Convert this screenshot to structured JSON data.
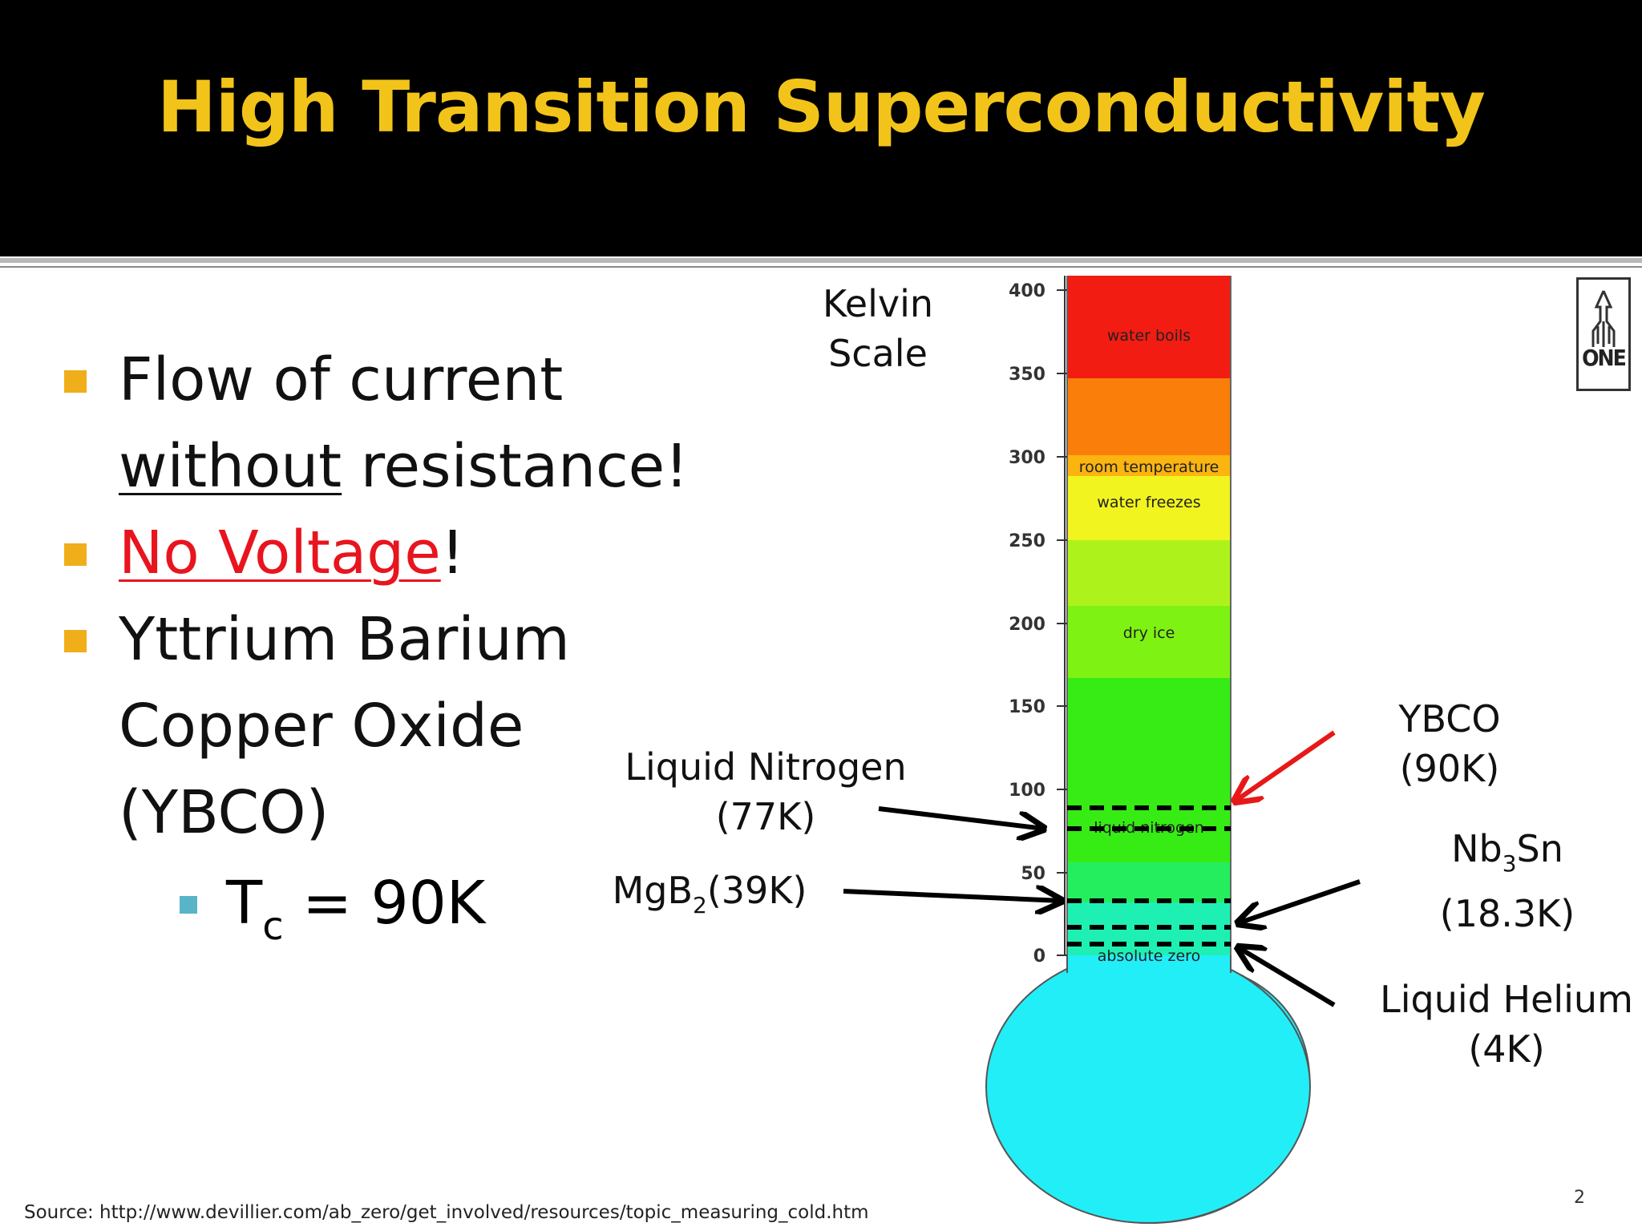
{
  "slide": {
    "title": "High Transition Superconductivity",
    "page_number": "2",
    "source": "Source: http://www.devillier.com/ab_zero/get_involved/resources/topic_measuring_cold.htm"
  },
  "bullets": {
    "b1_line1": "Flow of current",
    "b1_word_underlined": "without",
    "b1_rest": " resistance!",
    "b2_link": "No Voltage",
    "b2_rest": "!",
    "b3_line1": "Yttrium  Barium",
    "b3_line2": "Copper Oxide",
    "b3_line3": "(YBCO)",
    "sub_T": "T",
    "sub_c": "c",
    "sub_rest": " = 90K"
  },
  "diagram": {
    "scale_title": "Kelvin Scale",
    "ticks": [
      "400",
      "350",
      "300",
      "250",
      "200",
      "150",
      "100",
      "50",
      "0"
    ],
    "bands": {
      "water_boils": "water boils",
      "room_temperature": "room temperature",
      "water_freezes": "water freezes",
      "dry_ice": "dry ice",
      "liquid_nitrogen": "liquid nitrogen",
      "absolute_zero": "absolute zero"
    },
    "labels": {
      "ln2_line1": "Liquid Nitrogen",
      "ln2_line2": "(77K)",
      "mgb2_a": "MgB",
      "mgb2_sub": "2",
      "mgb2_b": "(39K)",
      "ybco_line1": "YBCO",
      "ybco_line2": "(90K)",
      "nb3sn_a": "Nb",
      "nb3sn_sub": "3",
      "nb3sn_b": "Sn (18.3K)",
      "he_line1": "Liquid Helium",
      "he_line2": "(4K)"
    },
    "marked_temperatures_K": [
      90,
      39,
      18.3,
      4
    ],
    "colors": {
      "arrow_black": "#000000",
      "arrow_red": "#e81818",
      "bulb": "#22eef8"
    }
  },
  "logo": {
    "text": "ONE"
  }
}
